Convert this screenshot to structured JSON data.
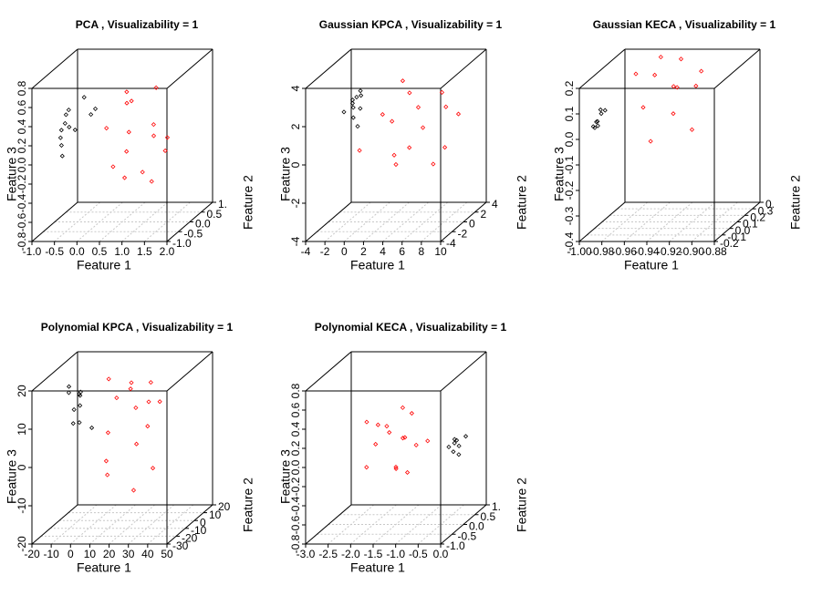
{
  "chart_data": [
    {
      "type": "scatter3d",
      "title": "PCA , Visualizability = 1",
      "x_label": "Feature 1",
      "y_label": "Feature 2",
      "z_label": "Feature 3",
      "grid": true,
      "xlim": [
        -1,
        2
      ],
      "xticks": [
        {
          "value": -1,
          "label": "-1.0"
        },
        -0.5,
        {
          "value": 0,
          "label": "0.0"
        },
        0.5,
        {
          "value": 1,
          "label": "1.0"
        },
        1.5,
        {
          "value": 2,
          "label": "2.0"
        }
      ],
      "ylim": [
        -1,
        1
      ],
      "yticks": [
        {
          "value": -1,
          "label": "-1.0"
        },
        -0.5,
        {
          "value": 0,
          "label": "0.0"
        },
        0.5,
        {
          "value": 1,
          "label": "1."
        }
      ],
      "zlim": [
        -0.8,
        0.8
      ],
      "zticks": [
        -0.8,
        -0.6,
        -0.4,
        -0.2,
        {
          "value": 0,
          "label": "0.0"
        },
        0.2,
        0.4,
        0.6,
        0.8
      ],
      "series": [
        {
          "color": "#000000",
          "x": [
            -0.8,
            -0.75,
            -0.7,
            -0.85,
            -0.72,
            -0.78,
            -0.6,
            -0.68,
            -0.74,
            -0.3,
            -0.5,
            -0.82
          ],
          "y": [
            0.1,
            -0.2,
            0.3,
            0,
            -0.1,
            0.2,
            0.5,
            -0.3,
            0.1,
            0.4,
            0.6,
            -0.1
          ],
          "z": [
            0.3,
            0.2,
            0.1,
            0,
            0.25,
            0.15,
            0.4,
            -0.05,
            0.35,
            0.3,
            0.2,
            0.1
          ]
        },
        {
          "color": "#ff0000",
          "x": [
            0.5,
            0.8,
            1,
            1.2,
            0.3,
            0.6,
            0.9,
            1.3,
            0.7,
            1.1,
            0.4,
            1.4,
            0.2,
            0.85,
            1
          ],
          "y": [
            0.2,
            -0.3,
            0.5,
            0,
            0.8,
            -0.6,
            0.1,
            0.4,
            -0.2,
            0.7,
            0.3,
            -0.4,
            -0.1,
            0.6,
            -0.8
          ],
          "z": [
            0.4,
            0.2,
            0.5,
            0.1,
            0.3,
            -0.1,
            -0.3,
            0,
            0.6,
            -0.2,
            -0.4,
            0.3,
            0.2,
            -0.5,
            0.1
          ]
        }
      ]
    },
    {
      "type": "scatter3d",
      "title": "Gaussian KPCA , Visualizability = 1",
      "x_label": "Feature 1",
      "y_label": "Feature 2",
      "z_label": "Feature 3",
      "grid": true,
      "xlim": [
        -4,
        10
      ],
      "xticks": [
        -4,
        -2,
        0,
        2,
        4,
        6,
        8,
        10
      ],
      "ylim": [
        -4,
        4
      ],
      "yticks": [
        -4,
        -2,
        0,
        2,
        4
      ],
      "zlim": [
        -4,
        4
      ],
      "zticks": [
        -4,
        -2,
        0,
        2,
        4
      ],
      "series": [
        {
          "color": "#000000",
          "x": [
            -1.5,
            -1.2,
            -1,
            -1.8,
            -0.8,
            -1.3,
            -1.1,
            -0.5,
            -1.6,
            -0.9
          ],
          "y": [
            0,
            -0.5,
            0.5,
            -1,
            0.2,
            -0.2,
            0.8,
            -0.8,
            0.3,
            -0.3
          ],
          "z": [
            2.2,
            2.5,
            1.8,
            2,
            2.8,
            1.5,
            2.4,
            1.2,
            1.9,
            2.6
          ]
        },
        {
          "color": "#ff0000",
          "x": [
            2,
            4,
            6,
            3,
            5,
            7,
            1,
            4.5,
            6.5,
            3.5,
            5.5,
            2.5,
            8,
            4,
            6
          ],
          "y": [
            1,
            -2,
            3,
            0,
            -1,
            2,
            -3,
            4,
            -2,
            1.5,
            0.5,
            -1.5,
            2.5,
            -0.5,
            3.5
          ],
          "z": [
            1,
            0,
            2,
            -1,
            3,
            1.5,
            0.5,
            -2,
            2.5,
            -0.5,
            0.8,
            2,
            1,
            3.5,
            -1
          ]
        }
      ]
    },
    {
      "type": "scatter3d",
      "title": "Gaussian KECA , Visualizability = 1",
      "x_label": "Feature 1",
      "y_label": "Feature 2",
      "z_label": "Feature 3",
      "grid": true,
      "xlim": [
        -1,
        -0.88
      ],
      "xticks": [
        {
          "value": -1,
          "label": "-1.00"
        },
        -0.98,
        -0.96,
        -0.94,
        -0.92,
        {
          "value": -0.9,
          "label": "-0.90"
        },
        -0.88
      ],
      "ylim": [
        -0.2,
        0.4
      ],
      "yticks": [
        -0.2,
        -0.1,
        {
          "value": 0,
          "label": "0.0"
        },
        0.1,
        0.2,
        0.3,
        {
          "value": 0.4,
          "label": "0."
        }
      ],
      "zlim": [
        -0.4,
        0.2
      ],
      "zticks": [
        -0.4,
        -0.3,
        -0.2,
        -0.1,
        {
          "value": 0,
          "label": "0.0"
        },
        0.1,
        0.2
      ],
      "series": [
        {
          "color": "#000000",
          "x": [
            -0.995,
            -0.994,
            -0.993,
            -0.996,
            -0.992,
            -0.995,
            -0.994,
            -0.993
          ],
          "y": [
            -0.05,
            0,
            -0.1,
            0.02,
            -0.08,
            -0.03,
            0.05,
            -0.12
          ],
          "z": [
            0.03,
            0.05,
            0.02,
            0.06,
            0.04,
            0.01,
            0.05,
            0.03
          ]
        },
        {
          "color": "#ff0000",
          "x": [
            -0.96,
            -0.95,
            -0.94,
            -0.93,
            -0.92,
            -0.97,
            -0.91,
            -0.95,
            -0.93,
            -0.94,
            -0.96,
            -0.92
          ],
          "y": [
            0.2,
            -0.1,
            0.25,
            0,
            0.15,
            0.1,
            -0.05,
            0.3,
            0.05,
            -0.15,
            0.28,
            0.22
          ],
          "z": [
            0.15,
            0.1,
            0.2,
            0.05,
            0.12,
            0.18,
            0,
            0.08,
            0.14,
            -0.02,
            0.2,
            0.16
          ]
        }
      ]
    },
    {
      "type": "scatter3d",
      "title": "Polynomial KPCA , Visualizability = 1",
      "x_label": "Feature 1",
      "y_label": "Feature 2",
      "z_label": "Feature 3",
      "grid": true,
      "xlim": [
        -20,
        50
      ],
      "xticks": [
        -20,
        -10,
        0,
        10,
        20,
        30,
        40,
        50
      ],
      "ylim": [
        -30,
        20
      ],
      "yticks": [
        -30,
        -20,
        -10,
        0,
        10,
        20
      ],
      "zlim": [
        -20,
        20
      ],
      "zticks": [
        -20,
        -10,
        0,
        10,
        20
      ],
      "series": [
        {
          "color": "#000000",
          "x": [
            -15,
            -12,
            -10,
            -14,
            -8,
            -11,
            -13,
            -9,
            -16,
            -6
          ],
          "y": [
            0,
            5,
            -5,
            10,
            -2,
            3,
            8,
            -8,
            2,
            6
          ],
          "z": [
            15,
            12,
            10,
            8,
            14,
            5,
            11,
            7,
            13,
            3
          ]
        },
        {
          "color": "#ff0000",
          "x": [
            5,
            10,
            15,
            20,
            25,
            12,
            18,
            8,
            22,
            28,
            14,
            16,
            10,
            24,
            20
          ],
          "y": [
            10,
            -10,
            5,
            0,
            15,
            -15,
            20,
            -5,
            8,
            -20,
            12,
            2,
            -12,
            5,
            18
          ],
          "z": [
            10,
            5,
            15,
            0,
            8,
            -5,
            12,
            18,
            3,
            -8,
            7,
            14,
            -2,
            10,
            -10
          ]
        }
      ]
    },
    {
      "type": "scatter3d",
      "title": "Polynomial KECA , Visualizability = 1",
      "x_label": "Feature 1",
      "y_label": "Feature 2",
      "z_label": "Feature 3",
      "grid": true,
      "xlim": [
        -3,
        0
      ],
      "xticks": [
        {
          "value": -3,
          "label": "-3.0"
        },
        -2.5,
        {
          "value": -2,
          "label": "-2.0"
        },
        -1.5,
        {
          "value": -1,
          "label": "-1.0"
        },
        -0.5,
        {
          "value": 0,
          "label": "0.0"
        }
      ],
      "ylim": [
        -1,
        1
      ],
      "yticks": [
        {
          "value": -1,
          "label": "-1.0"
        },
        -0.5,
        {
          "value": 0,
          "label": "0.0"
        },
        0.5,
        {
          "value": 1,
          "label": "1."
        }
      ],
      "zlim": [
        -0.8,
        0.8
      ],
      "zticks": [
        -0.8,
        -0.6,
        -0.4,
        -0.2,
        {
          "value": 0,
          "label": "0.0"
        },
        0.2,
        0.4,
        0.6,
        0.8
      ],
      "series": [
        {
          "color": "#000000",
          "x": [
            -0.2,
            -0.15,
            -0.1,
            -0.25,
            -0.05,
            -0.3,
            -0.18,
            -0.12
          ],
          "y": [
            0,
            0.1,
            -0.1,
            0.05,
            0.2,
            -0.05,
            0.15,
            -0.15
          ],
          "z": [
            0.05,
            0,
            0.1,
            -0.05,
            0.08,
            0.02,
            -0.1,
            0.12
          ]
        },
        {
          "color": "#ff0000",
          "x": [
            -2,
            -1.8,
            -1.6,
            -1.5,
            -1.3,
            -1.9,
            -1.4,
            -1.7,
            -1.2,
            -1.1,
            -2.2,
            -1,
            -1.6,
            -1.4,
            -1.8
          ],
          "y": [
            0.2,
            -0.3,
            0.5,
            0,
            0.3,
            -0.5,
            0.1,
            0.4,
            -0.2,
            0.6,
            0.1,
            -0.1,
            0.7,
            -0.6,
            0.3
          ],
          "z": [
            0.2,
            0.1,
            0,
            -0.2,
            0.3,
            -0.1,
            0.4,
            -0.3,
            0.15,
            -0.05,
            0.25,
            0.05,
            -0.4,
            0.35,
            0.1
          ]
        }
      ]
    }
  ]
}
